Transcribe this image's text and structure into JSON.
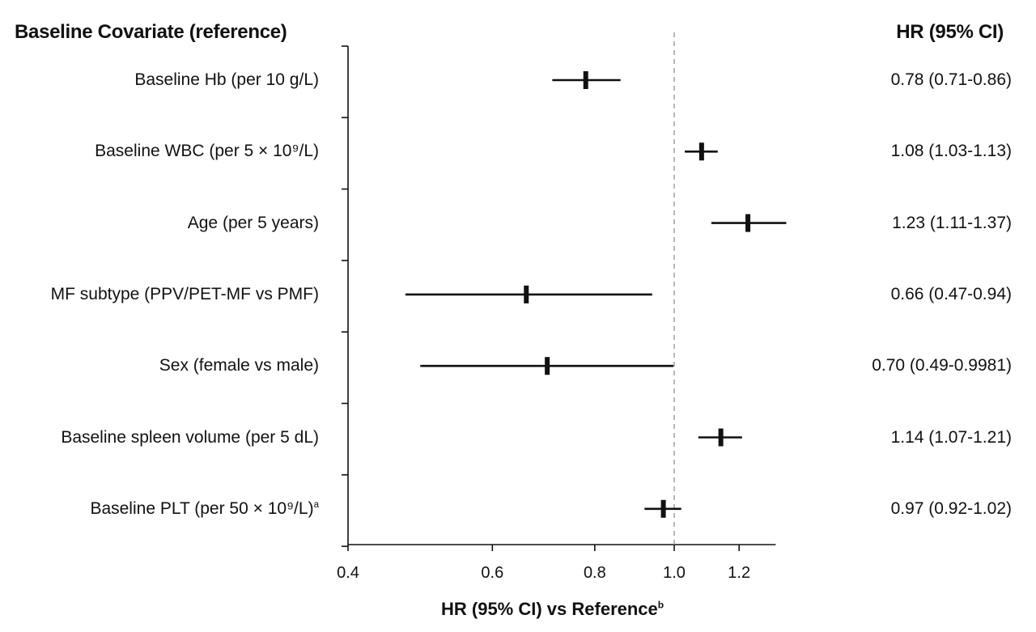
{
  "chart_data": {
    "type": "forest",
    "header_left": "Baseline Covariate (reference)",
    "header_right": "HR (95% CI)",
    "xlabel": "HR (95% CI) vs Reference",
    "xlabel_superscript": "b",
    "x_scale": "log",
    "xlim": [
      0.4,
      1.33
    ],
    "x_ticks": [
      "0.4",
      "0.6",
      "0.8",
      "1.0",
      "1.2"
    ],
    "x_tick_values": [
      0.4,
      0.6,
      0.8,
      1.0,
      1.2
    ],
    "reference_line": 1.0,
    "rows": [
      {
        "label": "Baseline Hb (per 10 g/L)",
        "superscript": "",
        "hr": 0.78,
        "lo": 0.71,
        "hi": 0.86,
        "text": "0.78 (0.71-0.86)"
      },
      {
        "label": "Baseline WBC (per 5 × 10⁹/L)",
        "superscript": "",
        "hr": 1.08,
        "lo": 1.03,
        "hi": 1.13,
        "text": "1.08 (1.03-1.13)"
      },
      {
        "label": "Age (per 5 years)",
        "superscript": "",
        "hr": 1.23,
        "lo": 1.11,
        "hi": 1.37,
        "text": "1.23 (1.11-1.37)"
      },
      {
        "label": "MF subtype (PPV/PET-MF vs PMF)",
        "superscript": "",
        "hr": 0.66,
        "lo": 0.47,
        "hi": 0.94,
        "text": "0.66 (0.47-0.94)"
      },
      {
        "label": "Sex (female vs male)",
        "superscript": "",
        "hr": 0.7,
        "lo": 0.49,
        "hi": 0.9981,
        "text": "0.70 (0.49-0.9981)"
      },
      {
        "label": "Baseline spleen volume (per 5 dL)",
        "superscript": "",
        "hr": 1.14,
        "lo": 1.07,
        "hi": 1.21,
        "text": "1.14 (1.07-1.21)"
      },
      {
        "label": "Baseline PLT (per 50 × 10⁹/L)",
        "superscript": "a",
        "hr": 0.97,
        "lo": 0.92,
        "hi": 1.02,
        "text": "0.97 (0.92-1.02)"
      }
    ]
  }
}
